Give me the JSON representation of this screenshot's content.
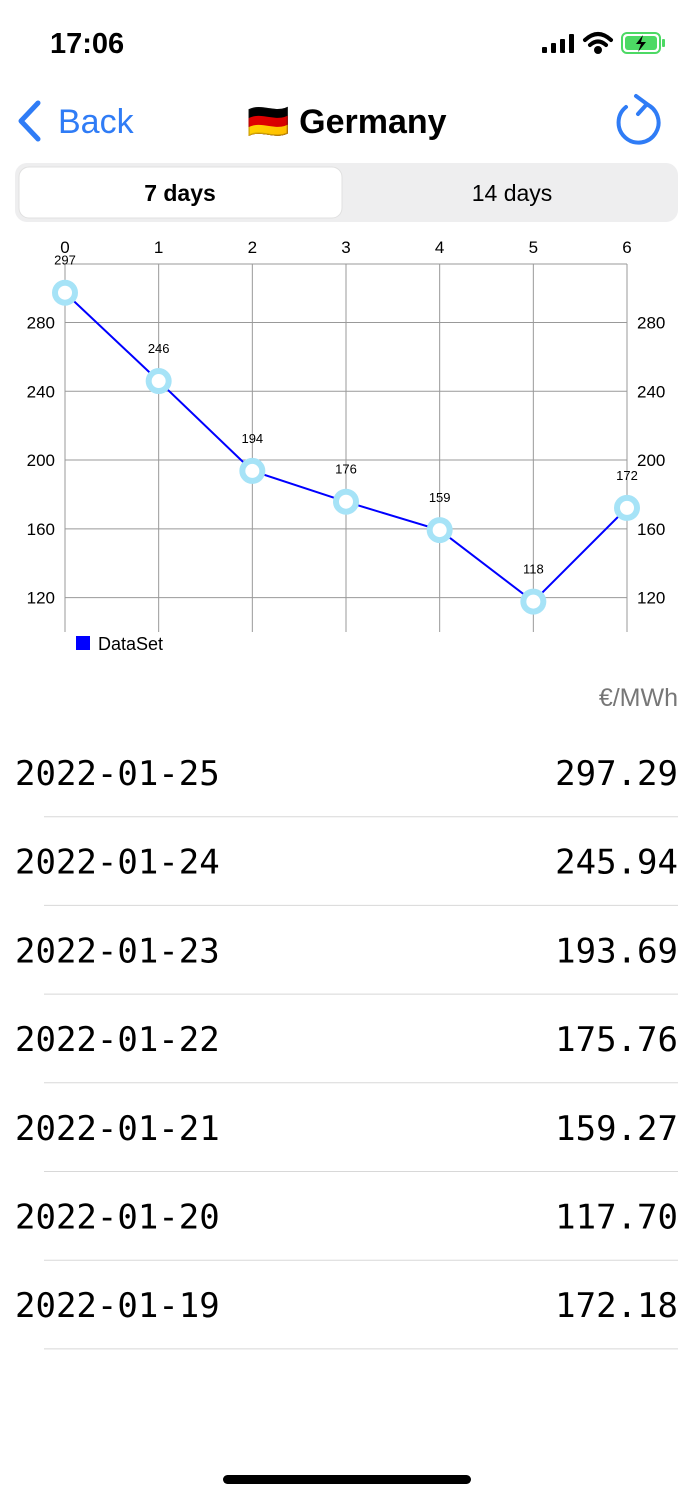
{
  "status_bar": {
    "time": "17:06"
  },
  "nav": {
    "back": "Back",
    "title": "🇩🇪 Germany"
  },
  "segments": [
    "7 days",
    "14 days"
  ],
  "chart_data": {
    "type": "line",
    "x": [
      0,
      1,
      2,
      3,
      4,
      5,
      6
    ],
    "series": [
      {
        "name": "DataSet",
        "color": "#0000ff",
        "marker_color": "#a6e3f7",
        "values": [
          297.29,
          245.94,
          193.69,
          175.76,
          159.27,
          117.7,
          172.18
        ],
        "value_labels": [
          "297",
          "246",
          "194",
          "176",
          "159",
          "118",
          "172"
        ]
      }
    ],
    "xlim": [
      0,
      6
    ],
    "xticks": [
      0,
      1,
      2,
      3,
      4,
      5,
      6
    ],
    "ylim": [
      100,
      314
    ],
    "yticks": [
      120,
      160,
      200,
      240,
      280
    ],
    "y2lim": [
      100,
      314
    ],
    "y2ticks": [
      120,
      160,
      200,
      240,
      280
    ],
    "grid": true,
    "legend": "bottom-left"
  },
  "unit": "€/MWh",
  "table": {
    "rows": [
      [
        "2022-01-25",
        "297.29"
      ],
      [
        "2022-01-24",
        "245.94"
      ],
      [
        "2022-01-23",
        "193.69"
      ],
      [
        "2022-01-22",
        "175.76"
      ],
      [
        "2022-01-21",
        "159.27"
      ],
      [
        "2022-01-20",
        "117.70"
      ],
      [
        "2022-01-19",
        "172.18"
      ]
    ]
  }
}
